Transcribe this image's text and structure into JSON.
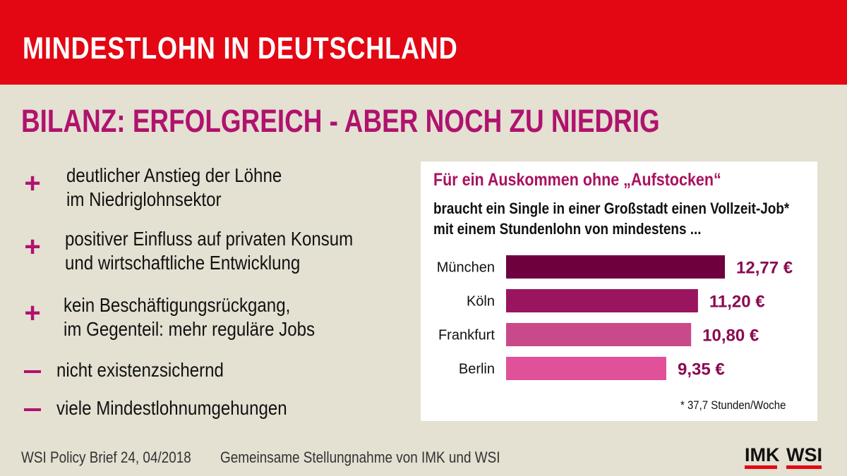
{
  "header": {
    "title": "MINDESTLOHN IN DEUTSCHLAND"
  },
  "subtitle": "BILANZ: ERFOLGREICH - ABER NOCH ZU NIEDRIG",
  "points": [
    {
      "marker": "+",
      "line1": "deutlicher Anstieg der Löhne",
      "line2": "im Niedriglohnsektor"
    },
    {
      "marker": "+",
      "line1": "positiver Einfluss auf privaten Konsum",
      "line2": "und wirtschaftliche Entwicklung"
    },
    {
      "marker": "+",
      "line1": "kein Beschäftigungsrückgang,",
      "line2": "im Gegenteil: mehr reguläre Jobs"
    },
    {
      "marker": "—",
      "line1": "nicht existenzsichernd"
    },
    {
      "marker": "—",
      "line1": "viele Mindestlohnumgehungen"
    }
  ],
  "chart_card": {
    "title": "Für ein Auskommen ohne „Aufstocken“",
    "subtitle_line1": "braucht ein Single in einer Großstadt einen Vollzeit-Job*",
    "subtitle_line2": "mit einem Stundenlohn von mindestens ...",
    "footnote": "* 37,7 Stunden/Woche"
  },
  "chart_data": {
    "type": "bar",
    "orientation": "horizontal",
    "categories": [
      "München",
      "Köln",
      "Frankfurt",
      "Berlin"
    ],
    "values": [
      12.77,
      11.2,
      10.8,
      9.35
    ],
    "value_labels": [
      "12,77 €",
      "11,20 €",
      "10,80 €",
      "9,35 €"
    ],
    "colors": [
      "#6e003f",
      "#99155f",
      "#c94a8a",
      "#e0519a"
    ],
    "label_color": "#8a0a50",
    "xlim": [
      0,
      12.77
    ],
    "grid": false
  },
  "footer": {
    "source": "WSI Policy Brief 24, 04/2018",
    "note": "Gemeinsame Stellungnahme von IMK und WSI",
    "logos": [
      "IMK",
      "WSI"
    ]
  }
}
